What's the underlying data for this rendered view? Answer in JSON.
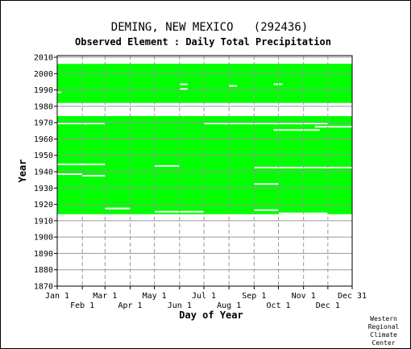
{
  "chart_data": {
    "type": "heatmap",
    "title": "DEMING, NEW MEXICO   (292436)",
    "subtitle": "Observed Element : Daily Total Precipitation",
    "xlabel": "Day of Year",
    "ylabel": "Year",
    "ylim": [
      1870,
      2011
    ],
    "x_ticks_top_row": [
      "Jan 1",
      "Mar 1",
      "May 1",
      "Jul 1",
      "Sep 1",
      "Nov 1",
      "Dec 31"
    ],
    "x_ticks_bottom_row": [
      "Feb 1",
      "Apr 1",
      "Jun 1",
      "Aug 1",
      "Oct 1",
      "Dec 1"
    ],
    "y_ticks": [
      1870,
      1880,
      1890,
      1900,
      1910,
      1920,
      1930,
      1940,
      1950,
      1960,
      1970,
      1980,
      1990,
      2000,
      2010
    ],
    "grid": true,
    "data_color": "#00ff00",
    "coverage_blocks": [
      {
        "start_year": 1914,
        "end_year": 1973
      },
      {
        "start_year": 1982,
        "end_year": 2005
      }
    ],
    "missing_segments": [
      {
        "year": 1969,
        "start_month": 1,
        "start_day": 1,
        "end_month": 2,
        "end_day": 28
      },
      {
        "year": 1969,
        "start_month": 7,
        "start_day": 1,
        "end_month": 11,
        "end_day": 30
      },
      {
        "year": 1967,
        "start_month": 11,
        "start_day": 15,
        "end_month": 12,
        "end_day": 31
      },
      {
        "year": 1965,
        "start_month": 9,
        "start_day": 25,
        "end_month": 11,
        "end_day": 20
      },
      {
        "year": 1944,
        "start_month": 1,
        "start_day": 1,
        "end_month": 2,
        "end_day": 28
      },
      {
        "year": 1943,
        "start_month": 5,
        "start_day": 1,
        "end_month": 5,
        "end_day": 31
      },
      {
        "year": 1942,
        "start_month": 9,
        "start_day": 1,
        "end_month": 12,
        "end_day": 31
      },
      {
        "year": 1938,
        "start_month": 1,
        "start_day": 1,
        "end_month": 1,
        "end_day": 31
      },
      {
        "year": 1937,
        "start_month": 2,
        "start_day": 1,
        "end_month": 2,
        "end_day": 28
      },
      {
        "year": 1932,
        "start_month": 9,
        "start_day": 1,
        "end_month": 9,
        "end_day": 30
      },
      {
        "year": 1917,
        "start_month": 3,
        "start_day": 1,
        "end_month": 3,
        "end_day": 31
      },
      {
        "year": 1916,
        "start_month": 9,
        "start_day": 1,
        "end_month": 9,
        "end_day": 30
      },
      {
        "year": 1915,
        "start_month": 5,
        "start_day": 1,
        "end_month": 6,
        "end_day": 30
      },
      {
        "year": 1914,
        "start_month": 10,
        "start_day": 1,
        "end_month": 11,
        "end_day": 30
      },
      {
        "year": 1993,
        "start_month": 6,
        "start_day": 1,
        "end_month": 6,
        "end_day": 10
      },
      {
        "year": 1990,
        "start_month": 6,
        "start_day": 1,
        "end_month": 6,
        "end_day": 10
      },
      {
        "year": 1992,
        "start_month": 8,
        "start_day": 1,
        "end_month": 8,
        "end_day": 10
      },
      {
        "year": 1993,
        "start_month": 9,
        "start_day": 25,
        "end_month": 10,
        "end_day": 5
      },
      {
        "year": 1981,
        "start_month": 1,
        "start_day": 1,
        "end_month": 12,
        "end_day": 31
      },
      {
        "year": 1988,
        "start_month": 1,
        "start_day": 1,
        "end_month": 1,
        "end_day": 5
      },
      {
        "year": 2006,
        "start_month": 1,
        "start_day": 1,
        "end_month": 2,
        "end_day": 28
      }
    ],
    "credit": [
      "Western",
      "Regional",
      "Climate",
      "Center"
    ]
  }
}
